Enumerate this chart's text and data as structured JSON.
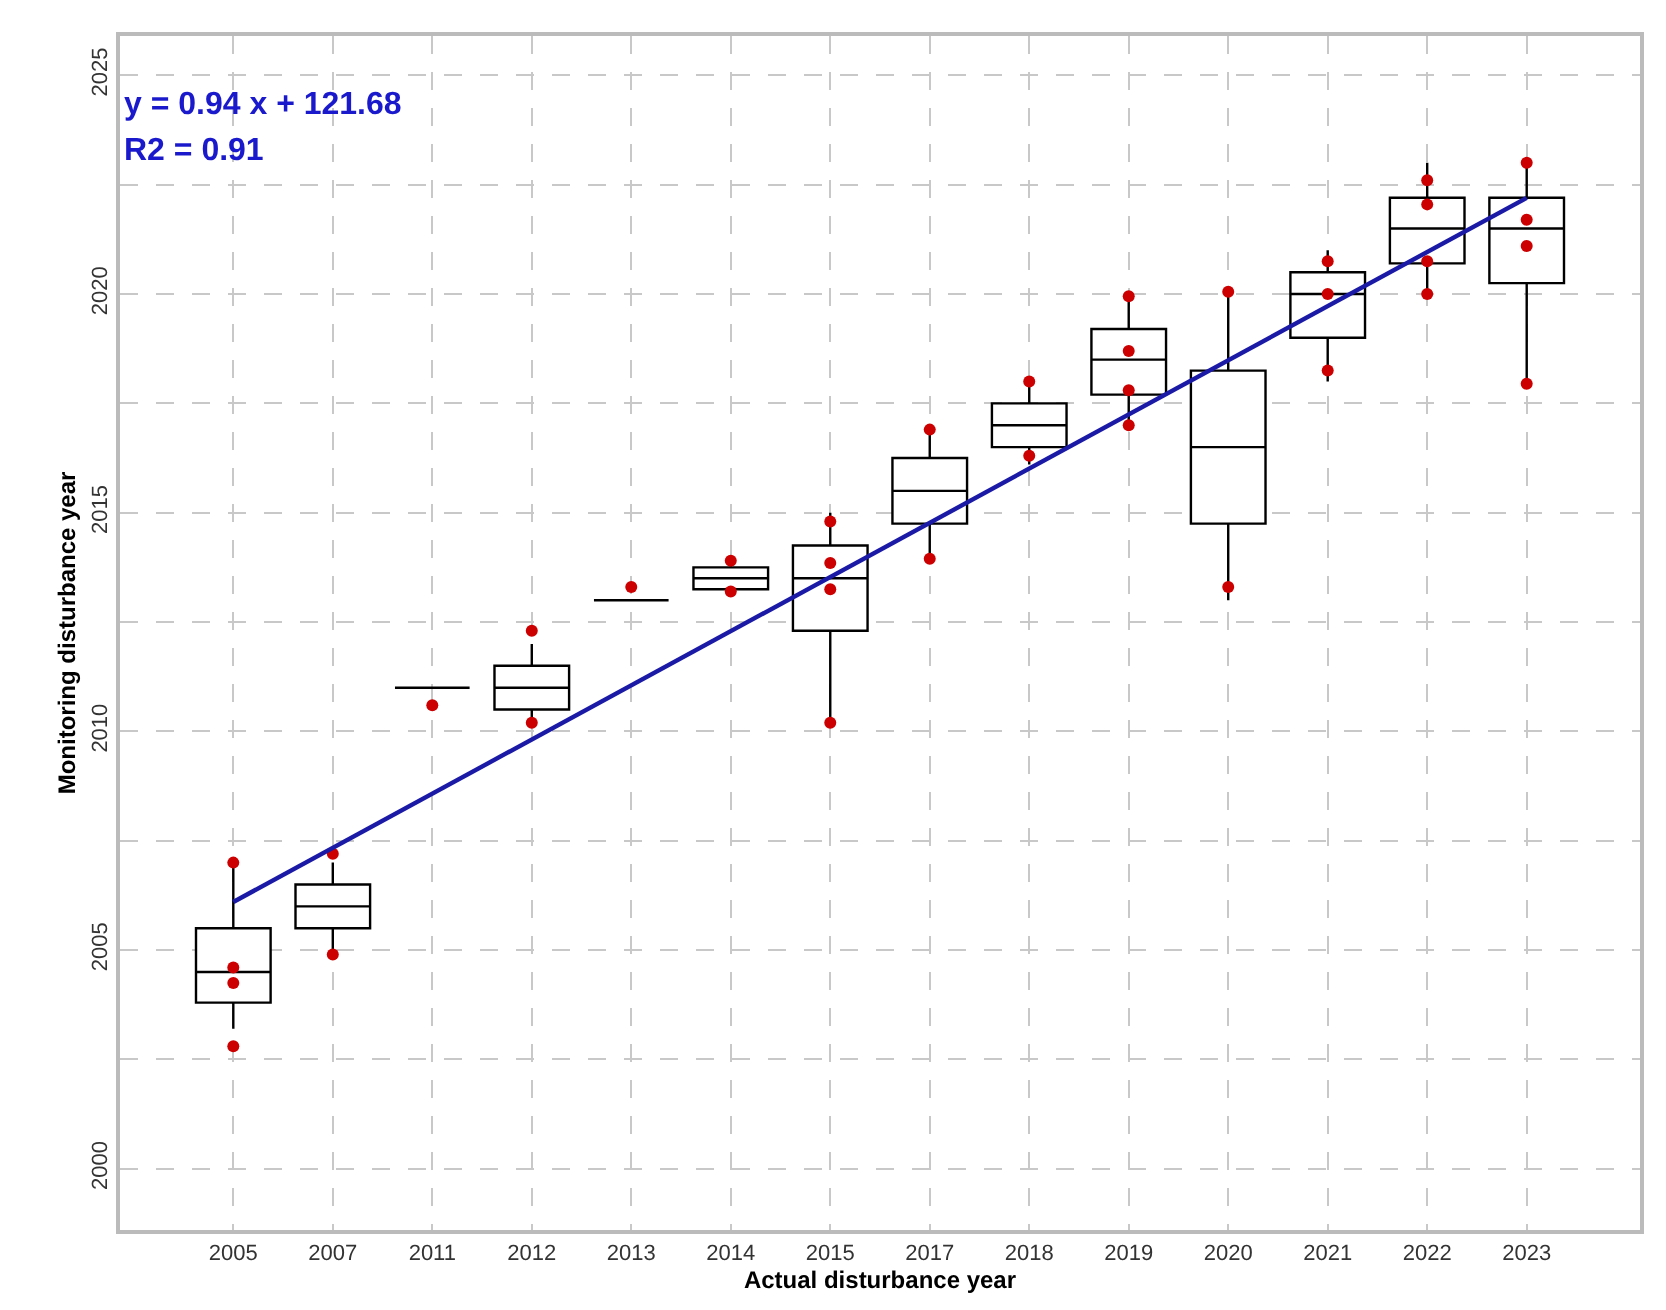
{
  "chart_data": {
    "type": "box",
    "xlabel": "Actual disturbance year",
    "ylabel": "Monitoring disturbance year",
    "annotations": [
      "y = 0.94 x + 121.68",
      "R2 = 0.91"
    ],
    "categories": [
      "2005",
      "2007",
      "2011",
      "2012",
      "2013",
      "2014",
      "2015",
      "2017",
      "2018",
      "2019",
      "2020",
      "2021",
      "2022",
      "2023"
    ],
    "ylim": [
      1998.6,
      2025.9
    ],
    "yticks": [
      2000,
      {
        "value": 2002.5,
        "label": null
      },
      2005,
      {
        "value": 2007.5,
        "label": null
      },
      2010,
      {
        "value": 2012.5,
        "label": null
      },
      2015,
      {
        "value": 2017.5,
        "label": null
      },
      2020,
      {
        "value": 2022.5,
        "label": null
      },
      2025
    ],
    "grid": true,
    "series": [
      {
        "type": "box",
        "color": "#000000",
        "boxes": [
          {
            "low": 2003.2,
            "q1": 2003.8,
            "median": 2004.5,
            "q3": 2005.5,
            "high": 2007.0
          },
          {
            "low": 2004.9,
            "q1": 2005.5,
            "median": 2006.0,
            "q3": 2006.5,
            "high": 2007.0
          },
          {
            "low": 2011.0,
            "q1": 2011.0,
            "median": 2011.0,
            "q3": 2011.0,
            "high": 2011.0
          },
          {
            "low": 2010.1,
            "q1": 2010.5,
            "median": 2011.0,
            "q3": 2011.5,
            "high": 2012.0
          },
          {
            "low": 2013.0,
            "q1": 2013.0,
            "median": 2013.0,
            "q3": 2013.0,
            "high": 2013.0
          },
          {
            "low": 2013.1,
            "q1": 2013.25,
            "median": 2013.5,
            "q3": 2013.75,
            "high": 2014.0
          },
          {
            "low": 2010.2,
            "q1": 2012.3,
            "median": 2013.5,
            "q3": 2014.25,
            "high": 2015.0
          },
          {
            "low": 2014.0,
            "q1": 2014.75,
            "median": 2015.5,
            "q3": 2016.25,
            "high": 2016.9
          },
          {
            "low": 2016.1,
            "q1": 2016.5,
            "median": 2017.0,
            "q3": 2017.5,
            "high": 2018.0
          },
          {
            "low": 2017.0,
            "q1": 2017.7,
            "median": 2018.5,
            "q3": 2019.2,
            "high": 2019.95
          },
          {
            "low": 2013.0,
            "q1": 2014.75,
            "median": 2016.5,
            "q3": 2018.25,
            "high": 2020.0
          },
          {
            "low": 2018.0,
            "q1": 2019.0,
            "median": 2020.0,
            "q3": 2020.5,
            "high": 2021.0
          },
          {
            "low": 2020.0,
            "q1": 2020.7,
            "median": 2021.5,
            "q3": 2022.2,
            "high": 2023.0
          },
          {
            "low": 2018.0,
            "q1": 2020.25,
            "median": 2021.5,
            "q3": 2022.2,
            "high": 2023.0
          }
        ]
      },
      {
        "type": "scatter",
        "color": "#cc0000",
        "marker": "circle",
        "values": [
          2007.0,
          2007.2,
          2010.6,
          2012.3,
          2013.3,
          2013.9,
          2014.8,
          2016.9,
          2018.0,
          2019.95,
          2020.05,
          2020.75,
          2022.6,
          2023.0
        ]
      },
      {
        "type": "scatter",
        "color": "#cc0000",
        "marker": "circle",
        "values": [
          2004.6,
          2004.9,
          null,
          2010.2,
          null,
          2013.2,
          2013.85,
          2013.95,
          2016.3,
          2018.7,
          2013.3,
          2020.0,
          2022.05,
          2021.7
        ]
      },
      {
        "type": "scatter",
        "color": "#cc0000",
        "marker": "circle",
        "values": [
          2004.25,
          null,
          null,
          null,
          null,
          null,
          2013.25,
          null,
          null,
          2017.8,
          null,
          2018.25,
          2020.75,
          2021.1
        ]
      },
      {
        "type": "scatter",
        "color": "#cc0000",
        "marker": "circle",
        "values": [
          2002.8,
          null,
          null,
          null,
          null,
          null,
          2010.2,
          null,
          null,
          2017.0,
          null,
          null,
          2020.0,
          2017.95
        ]
      },
      {
        "type": "line",
        "color": "#1a1aa6",
        "line_style": "solid",
        "marker": "none",
        "values": [
          2006.1,
          null,
          null,
          null,
          null,
          null,
          null,
          null,
          null,
          null,
          null,
          null,
          null,
          2022.2
        ]
      }
    ]
  }
}
